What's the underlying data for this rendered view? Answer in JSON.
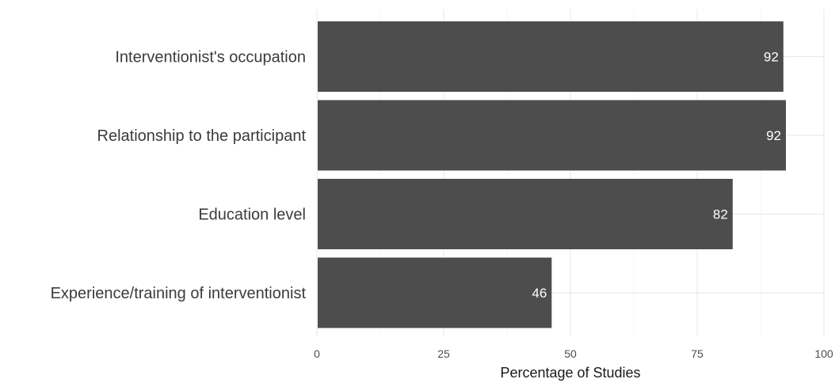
{
  "chart_data": {
    "type": "bar",
    "orientation": "horizontal",
    "categories": [
      "Interventionist's occupation",
      "Relationship to the participant",
      "Education level",
      "Experience/training of interventionist"
    ],
    "values": [
      92,
      92.5,
      82,
      46.3
    ],
    "data_labels": [
      "92",
      "92",
      "82",
      "46"
    ],
    "title": "",
    "xlabel": "Percentage of Studies",
    "ylabel": "",
    "xlim": [
      0,
      100
    ],
    "x_ticks": [
      0,
      25,
      50,
      75,
      100
    ],
    "x_tick_labels": [
      "0",
      "25",
      "50",
      "75",
      "100"
    ],
    "grid": true,
    "legend": "none",
    "colors": {
      "bar": "#4d4d4d",
      "grid_major": "#ebebeb",
      "grid_minor": "#f4f4f4",
      "data_label": "#ffffff"
    }
  }
}
